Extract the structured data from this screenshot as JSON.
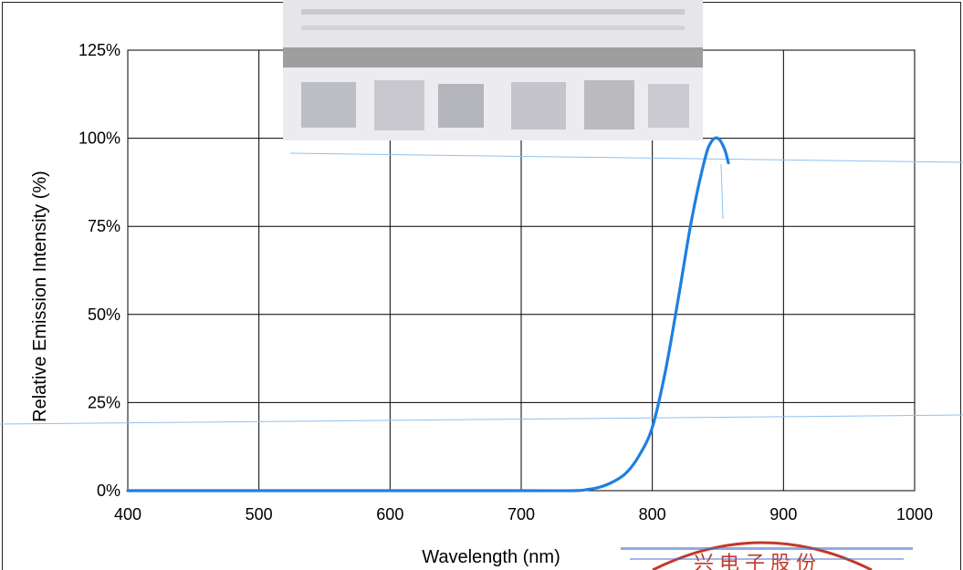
{
  "chart_data": {
    "type": "line",
    "title": "",
    "xlabel": "Wavelength  (nm)",
    "ylabel": "Relative Emission Intensity (%)",
    "xlim": [
      400,
      1000
    ],
    "ylim": [
      0,
      125
    ],
    "xticks": [
      400,
      500,
      600,
      700,
      800,
      900,
      1000
    ],
    "yticks": [
      0,
      25,
      50,
      75,
      100,
      125
    ],
    "ytick_labels": [
      "0%",
      "25%",
      "50%",
      "75%",
      "100%",
      "125%"
    ],
    "grid": true,
    "series_color": "#1f7fe0",
    "series": [
      {
        "x": [
          400,
          500,
          600,
          700,
          740,
          750,
          760,
          770,
          780,
          790,
          800,
          810,
          820,
          830,
          840,
          845,
          850,
          855,
          858
        ],
        "values": [
          0,
          0,
          0,
          0,
          0,
          0.3,
          1,
          2.5,
          5,
          10,
          18,
          34,
          55,
          77,
          94,
          99,
          100,
          97,
          93
        ]
      }
    ]
  },
  "stamp": {
    "text": "兴电子股份",
    "color": "#c0392b"
  }
}
